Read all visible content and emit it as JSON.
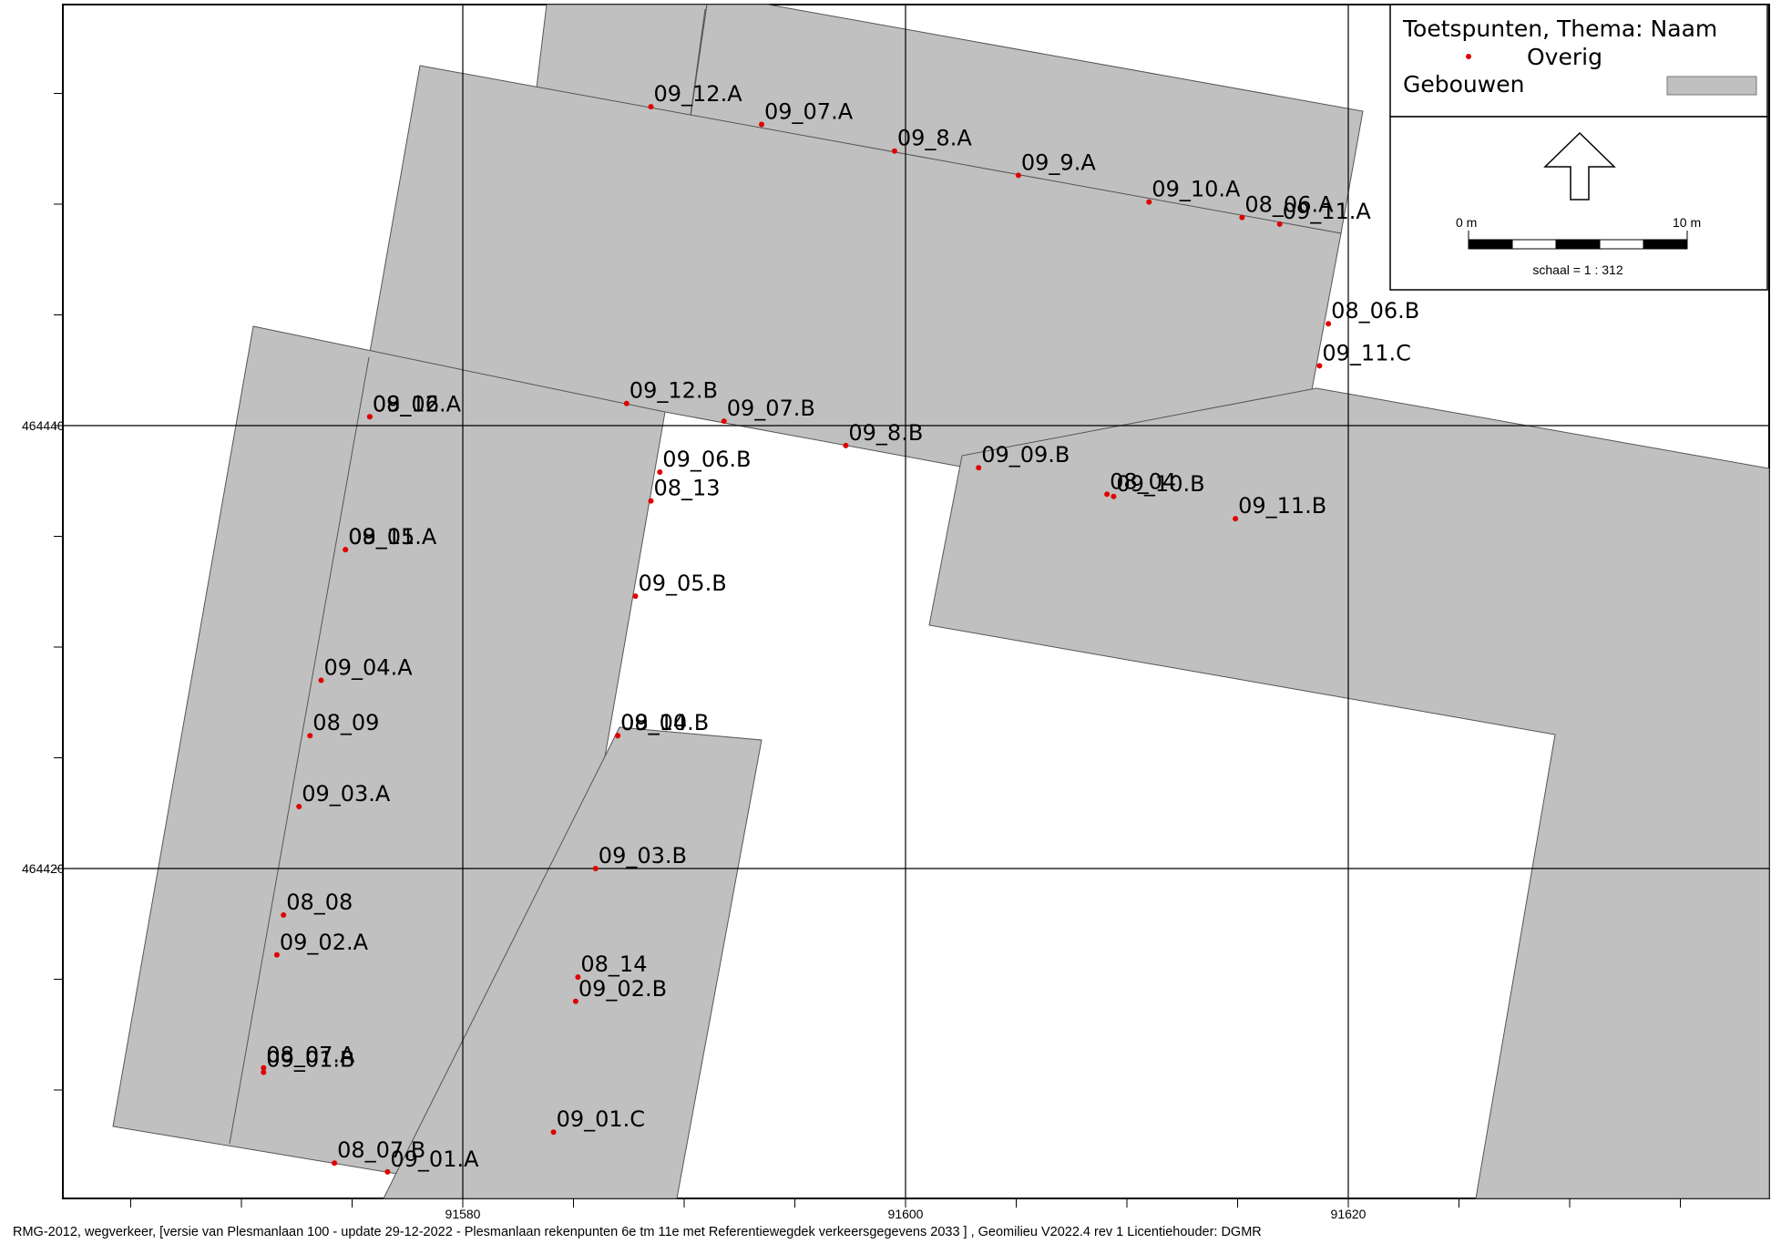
{
  "legend": {
    "title": "Toetspunten, Thema: Naam",
    "point_label": "Overig",
    "buildings_label": "Gebouwen",
    "point_color": "#e00000",
    "building_color": "#c0c0c0"
  },
  "scale": {
    "start_label": "0 m",
    "end_label": "10 m",
    "ratio_text": "schaal = 1 : 312"
  },
  "axes": {
    "x_ticks": [
      "91580",
      "91600",
      "91620"
    ],
    "y_ticks": [
      "464440",
      "464420"
    ]
  },
  "footer_text": "RMG-2012, wegverkeer, [versie van Plesmanlaan 100 - update 29-12-2022 - Plesmanlaan rekenpunten 6e tm 11e met Referentiewegdek verkeersgegevens 2033 ] , Geomilieu V2022.4 rev 1 Licentiehouder: DGMR",
  "points": [
    {
      "label": "09_12.A",
      "x": 91588.5,
      "y": 464454.4
    },
    {
      "label": "09_07.A",
      "x": 91593.5,
      "y": 464453.6
    },
    {
      "label": "09_8.A",
      "x": 91599.5,
      "y": 464452.4
    },
    {
      "label": "09_9.A",
      "x": 91605.1,
      "y": 464451.3
    },
    {
      "label": "09_10.A",
      "x": 91611.0,
      "y": 464450.1
    },
    {
      "label": "08_06.A",
      "x": 91615.2,
      "y": 464449.4
    },
    {
      "label": "09_11.A",
      "x": 91616.9,
      "y": 464449.1
    },
    {
      "label": "08_06.B",
      "x": 91619.1,
      "y": 464444.6
    },
    {
      "label": "09_11.C",
      "x": 91618.7,
      "y": 464442.7
    },
    {
      "label": "08_12",
      "x": 91575.8,
      "y": 464440.4
    },
    {
      "label": "09_06.A",
      "x": 91575.8,
      "y": 464440.4
    },
    {
      "label": "09_12.B",
      "x": 91587.4,
      "y": 464441.0
    },
    {
      "label": "09_07.B",
      "x": 91591.8,
      "y": 464440.2
    },
    {
      "label": "09_8.B",
      "x": 91597.3,
      "y": 464439.1
    },
    {
      "label": "09_06.B",
      "x": 91588.9,
      "y": 464437.9
    },
    {
      "label": "09_09.B",
      "x": 91603.3,
      "y": 464438.1
    },
    {
      "label": "08_04",
      "x": 91609.1,
      "y": 464436.9
    },
    {
      "label": "09_10.B",
      "x": 91609.4,
      "y": 464436.8
    },
    {
      "label": "09_11.B",
      "x": 91614.9,
      "y": 464435.8
    },
    {
      "label": "08_13",
      "x": 91588.5,
      "y": 464436.6
    },
    {
      "label": "08_11",
      "x": 91574.7,
      "y": 464434.4
    },
    {
      "label": "09_05.A",
      "x": 91574.7,
      "y": 464434.4
    },
    {
      "label": "09_05.B",
      "x": 91587.8,
      "y": 464432.3
    },
    {
      "label": "09_04.A",
      "x": 91573.6,
      "y": 464428.5
    },
    {
      "label": "08_10",
      "x": 91587.0,
      "y": 464426.0
    },
    {
      "label": "09_04.B",
      "x": 91587.0,
      "y": 464426.0
    },
    {
      "label": "08_09",
      "x": 91573.1,
      "y": 464426.0
    },
    {
      "label": "09_03.A",
      "x": 91572.6,
      "y": 464422.8
    },
    {
      "label": "09_03.B",
      "x": 91586.0,
      "y": 464420.0
    },
    {
      "label": "08_08",
      "x": 91571.9,
      "y": 464417.9
    },
    {
      "label": "09_02.A",
      "x": 91571.6,
      "y": 464416.1
    },
    {
      "label": "08_14",
      "x": 91585.2,
      "y": 464415.1
    },
    {
      "label": "09_02.B",
      "x": 91585.1,
      "y": 464414.0
    },
    {
      "label": "08_07.A",
      "x": 91571.0,
      "y": 464411.0
    },
    {
      "label": "09_01.B",
      "x": 91571.0,
      "y": 464410.8
    },
    {
      "label": "09_01.C",
      "x": 91584.1,
      "y": 464408.1
    },
    {
      "label": "08_07.B",
      "x": 91574.2,
      "y": 464406.7
    },
    {
      "label": "09_01.A",
      "x": 91576.6,
      "y": 464406.3
    }
  ]
}
